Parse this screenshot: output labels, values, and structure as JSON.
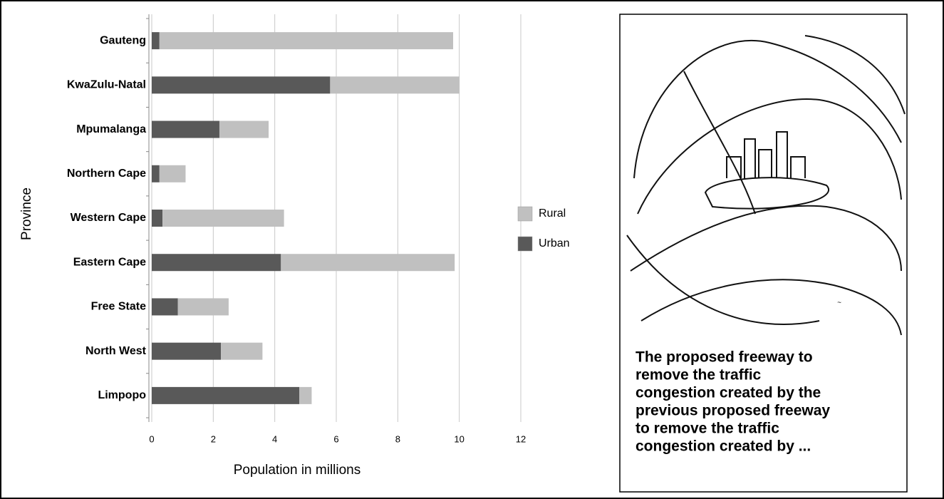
{
  "chart_data": {
    "type": "stacked-barh",
    "categories": [
      "Gauteng",
      "KwaZulu-Natal",
      "Mpumalanga",
      "Northern Cape",
      "Western Cape",
      "Eastern Cape",
      "Free State",
      "North West",
      "Limpopo"
    ],
    "series": [
      {
        "name": "Urban",
        "color": "#595959",
        "values": [
          0.25,
          5.8,
          2.2,
          0.25,
          0.35,
          4.2,
          0.85,
          2.25,
          4.8
        ]
      },
      {
        "name": "Rural",
        "color": "#c0c0c0",
        "values": [
          9.55,
          4.2,
          1.6,
          0.85,
          3.95,
          5.65,
          1.65,
          1.35,
          0.4
        ]
      }
    ],
    "x_label": "Population in millions",
    "y_label": "Province",
    "xlim": [
      0,
      12
    ],
    "xticks": [
      0,
      2,
      4,
      6,
      8,
      10,
      12
    ],
    "grid": true,
    "legend": "right"
  },
  "cartoon": {
    "caption_lines": [
      "The proposed freeway to",
      "remove the traffic",
      "congestion created by the",
      "previous proposed freeway",
      "to remove the traffic",
      "congestion created by ..."
    ]
  }
}
